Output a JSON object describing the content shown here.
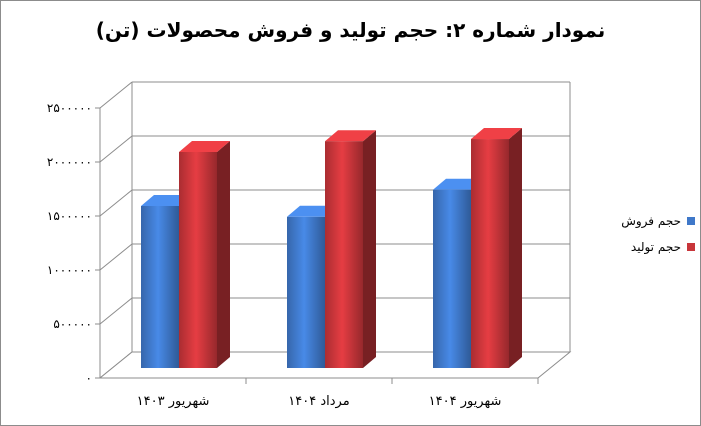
{
  "chart_data": {
    "type": "bar",
    "title": "نمودار شماره ۲: حجم تولید و فروش محصولات (تن)",
    "categories": [
      "شهریور ۱۴۰۳",
      "مرداد ۱۴۰۴",
      "شهریور ۱۴۰۴"
    ],
    "series": [
      {
        "name": "حجم فروش",
        "color": "#3f78c9",
        "values": [
          1500000,
          1400000,
          1650000
        ]
      },
      {
        "name": "حجم تولید",
        "color": "#c8353a",
        "values": [
          2000000,
          2100000,
          2120000
        ]
      }
    ],
    "ylim": [
      0,
      2500000
    ],
    "yticks": [
      0,
      500000,
      1000000,
      1500000,
      2000000,
      2500000
    ],
    "ytick_labels": [
      "۰",
      "۵۰۰۰۰۰",
      "۱۰۰۰۰۰۰",
      "۱۵۰۰۰۰۰",
      "۲۰۰۰۰۰۰",
      "۲۵۰۰۰۰۰"
    ],
    "grid": true,
    "legend": "right",
    "style": "3d-clustered-column"
  }
}
